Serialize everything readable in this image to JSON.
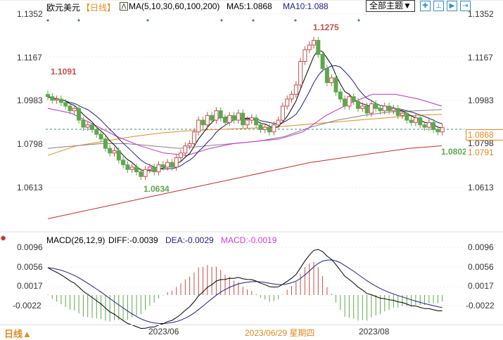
{
  "header": {
    "symbol": "欧元美元",
    "period": "【日线】",
    "ma_label": "MA(5,10,30,60,100,200)",
    "ma5": "MA5:1.0868",
    "ma10": "MA10:1.088",
    "theme_button": "全部主题▼"
  },
  "price_axis": [
    "1.1352",
    "1.1167",
    "1.0983",
    "1.0798",
    "1.0613"
  ],
  "right_price_axis": [
    "1.1352",
    "1.1167",
    "1.0983",
    "1.0613"
  ],
  "price_tags": {
    "current": "1.0868",
    "ma_value": "1.0791",
    "hidden": "1.0798"
  },
  "annotations": {
    "high": "1.1275",
    "low": "1.0634",
    "start": "1.1091",
    "recent_low": "1.0802"
  },
  "macd": {
    "label": "MACD(26,12,9)",
    "diff": "DIFF:-0.0039",
    "dea": "DEA:-0.0029",
    "macd": "MACD:-0.0019",
    "axis": [
      "0.0096",
      "0.0056",
      "0.0017",
      "-0.0022"
    ]
  },
  "footer": {
    "period": "日线▲",
    "dates": [
      "2023/06",
      "2023/08"
    ],
    "cursor_date": "2023/06/29 星期四"
  },
  "colors": {
    "up": "#c0504d",
    "down": "#5fa64f",
    "ma5": "#000000",
    "ma10": "#1f1f7a",
    "ma30": "#c030c0",
    "ma60": "#808080",
    "ma100": "#e08a20",
    "ma200": "#c03030"
  },
  "chart_data": {
    "type": "candlestick",
    "closes": [
      1.1,
      1.0985,
      1.099,
      1.0975,
      1.096,
      1.094,
      1.095,
      1.09,
      1.087,
      1.088,
      1.086,
      1.084,
      1.082,
      1.078,
      1.076,
      1.077,
      1.073,
      1.071,
      1.069,
      1.07,
      1.068,
      1.066,
      1.069,
      1.07,
      1.068,
      1.071,
      1.07,
      1.072,
      1.07,
      1.074,
      1.076,
      1.079,
      1.08,
      1.085,
      1.09,
      1.088,
      1.092,
      1.09,
      1.094,
      1.091,
      1.089,
      1.092,
      1.09,
      1.093,
      1.088,
      1.09,
      1.091,
      1.088,
      1.086,
      1.087,
      1.085,
      1.088,
      1.09,
      1.096,
      1.099,
      1.101,
      1.105,
      1.115,
      1.12,
      1.122,
      1.124,
      1.118,
      1.112,
      1.106,
      1.108,
      1.102,
      1.099,
      1.096,
      1.1,
      1.098,
      1.095,
      1.096,
      1.093,
      1.097,
      1.095,
      1.094,
      1.096,
      1.094,
      1.095,
      1.092,
      1.093,
      1.09,
      1.089,
      1.091,
      1.088,
      1.087,
      1.089,
      1.086,
      1.085,
      1.0868
    ],
    "ma30": [
      1.095,
      1.093,
      1.088,
      1.083,
      1.079,
      1.076,
      1.075,
      1.078,
      1.08,
      1.081,
      1.082,
      1.085,
      1.092,
      1.097,
      1.101,
      1.101,
      1.099,
      1.096
    ],
    "ma60": [
      1.078,
      1.079,
      1.08,
      1.08,
      1.079,
      1.078,
      1.079,
      1.08,
      1.081,
      1.083,
      1.087,
      1.09,
      1.092,
      1.0935,
      1.094,
      1.0945
    ],
    "ma100": [
      1.075,
      1.079,
      1.081,
      1.083,
      1.0845,
      1.0855,
      1.086,
      1.0865,
      1.087,
      1.088,
      1.089,
      1.09,
      1.091,
      1.092,
      1.0925
    ],
    "ma200": [
      1.048,
      1.051,
      1.054,
      1.057,
      1.06,
      1.063,
      1.066,
      1.069,
      1.072,
      1.074,
      1.076,
      1.078,
      1.0791
    ],
    "ylim": [
      1.045,
      1.14
    ]
  }
}
